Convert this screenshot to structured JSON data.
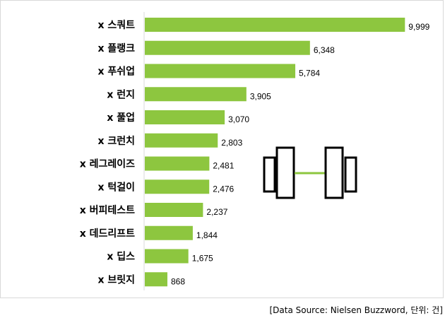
{
  "chart_data": {
    "type": "bar",
    "orientation": "horizontal",
    "categories": [
      "x 스쿼트",
      "x 플랭크",
      "x 푸쉬업",
      "x 런지",
      "x 풀업",
      "x 크런치",
      "x 레그레이즈",
      "x 턱걸이",
      "x 버피테스트",
      "x 데드리프트",
      "x 딥스",
      "x 브릿지"
    ],
    "values": [
      9999,
      6348,
      5784,
      3905,
      3070,
      2803,
      2481,
      2476,
      2237,
      1844,
      1675,
      868
    ],
    "value_labels": [
      "9,999",
      "6,348",
      "5,784",
      "3,905",
      "3,070",
      "2,803",
      "2,481",
      "2,476",
      "2,237",
      "1,844",
      "1,675",
      "868"
    ],
    "xlim": [
      0,
      12000
    ],
    "bar_color": "#8dc63f",
    "grid": false,
    "legend": "none",
    "axis_line_color": "#d9d9d9"
  },
  "source_note": "[Data Source: Nielsen  Buzzword, 단위:  건]",
  "decoration": {
    "icon": "barbell-icon",
    "stroke_color": "#000000",
    "bar_color": "#8dc63f"
  }
}
